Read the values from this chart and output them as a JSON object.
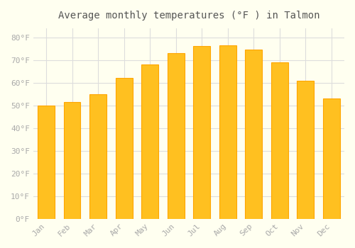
{
  "title": "Average monthly temperatures (°F ) in Talmon",
  "months": [
    "Jan",
    "Feb",
    "Mar",
    "Apr",
    "May",
    "Jun",
    "Jul",
    "Aug",
    "Sep",
    "Oct",
    "Nov",
    "Dec"
  ],
  "values": [
    50,
    51.5,
    55,
    62,
    68,
    73,
    76,
    76.5,
    74.5,
    69,
    61,
    53
  ],
  "bar_color_main": "#FFC020",
  "bar_color_edge": "#FFA500",
  "background_color": "#FFFFF0",
  "grid_color": "#DDDDDD",
  "text_color": "#AAAAAA",
  "title_color": "#555555",
  "ylim": [
    0,
    84
  ],
  "yticks": [
    0,
    10,
    20,
    30,
    40,
    50,
    60,
    70,
    80
  ],
  "figsize": [
    5.0,
    3.5
  ],
  "dpi": 100
}
